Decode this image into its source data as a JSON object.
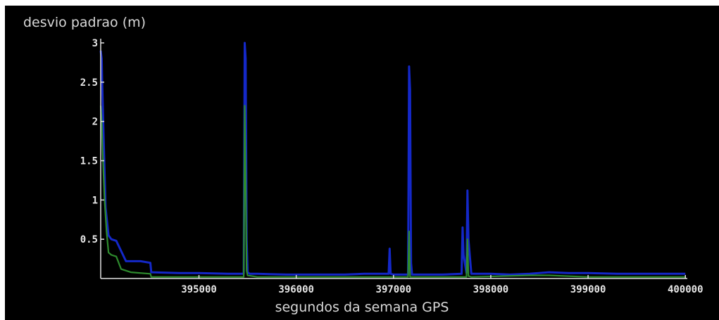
{
  "chart_data": {
    "type": "line",
    "title": "",
    "ylabel": "desvio padrao  (m)",
    "xlabel": "segundos da semana GPS",
    "xlim": [
      393990,
      400020
    ],
    "ylim": [
      0,
      3
    ],
    "xticks": [
      395000,
      396000,
      397000,
      398000,
      399000,
      400000
    ],
    "xtick_labels": [
      "395000",
      "396000",
      "397000",
      "398000",
      "399000",
      "400000"
    ],
    "yticks": [
      0.5,
      1,
      1.5,
      2,
      2.5,
      3
    ],
    "ytick_labels": [
      "0.5",
      "1",
      "1.5",
      "2",
      "2.5",
      "3"
    ],
    "grid": false,
    "legend": "none",
    "series": [
      {
        "color": "#1428c8",
        "x": [
          393990,
          394000,
          394005,
          394020,
          394040,
          394070,
          394100,
          394150,
          394200,
          394250,
          394400,
          394500,
          394510,
          394800,
          395000,
          395300,
          395460,
          395470,
          395480,
          395490,
          395500,
          395520,
          395600,
          395900,
          396200,
          396500,
          396700,
          396950,
          396960,
          396970,
          397000,
          397150,
          397160,
          397170,
          397180,
          397190,
          397300,
          397500,
          397700,
          397710,
          397720,
          397750,
          397760,
          397770,
          397800,
          398000,
          398200,
          398400,
          398600,
          398800,
          399000,
          399300,
          399600,
          400000
        ],
        "y": [
          2.9,
          2.8,
          2.5,
          1.8,
          0.9,
          0.55,
          0.5,
          0.48,
          0.35,
          0.22,
          0.22,
          0.2,
          0.08,
          0.07,
          0.07,
          0.06,
          0.06,
          3.0,
          2.8,
          0.5,
          0.08,
          0.06,
          0.06,
          0.05,
          0.05,
          0.05,
          0.06,
          0.06,
          0.38,
          0.06,
          0.05,
          0.05,
          2.7,
          2.4,
          0.2,
          0.05,
          0.05,
          0.05,
          0.06,
          0.65,
          0.3,
          0.07,
          1.12,
          0.5,
          0.06,
          0.06,
          0.05,
          0.06,
          0.08,
          0.07,
          0.07,
          0.06,
          0.06,
          0.06
        ]
      },
      {
        "color": "#2e8b2e",
        "x": [
          393990,
          394000,
          394010,
          394030,
          394050,
          394070,
          394100,
          394150,
          394200,
          394300,
          394500,
          394510,
          394800,
          395200,
          395460,
          395470,
          395480,
          395490,
          395500,
          395600,
          396000,
          396500,
          397000,
          397150,
          397160,
          397170,
          397500,
          397750,
          397760,
          397770,
          397800,
          398400,
          398600,
          399000,
          399500,
          400000
        ],
        "y": [
          2.2,
          2.0,
          1.6,
          1.0,
          0.6,
          0.33,
          0.3,
          0.28,
          0.12,
          0.08,
          0.06,
          0.02,
          0.02,
          0.02,
          0.02,
          2.2,
          1.3,
          0.1,
          0.04,
          0.02,
          0.02,
          0.02,
          0.02,
          0.02,
          0.6,
          0.02,
          0.02,
          0.02,
          0.5,
          0.03,
          0.02,
          0.04,
          0.04,
          0.02,
          0.02,
          0.02
        ]
      }
    ]
  }
}
